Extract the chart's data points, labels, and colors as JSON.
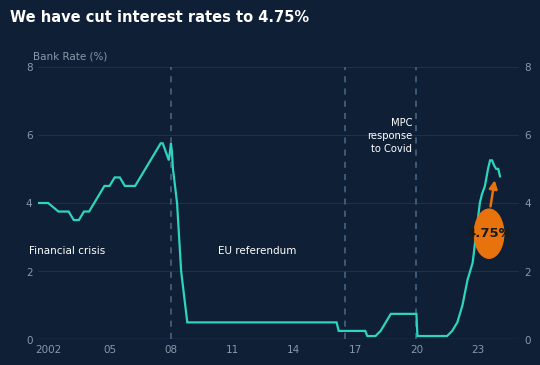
{
  "title": "We have cut interest rates to 4.75%",
  "ylabel": "Bank Rate (%)",
  "bg_color": "#0f1f35",
  "line_color": "#2dd4bf",
  "text_color": "#ffffff",
  "grid_color": "#1e3050",
  "label_color": "#8899aa",
  "ylim": [
    0,
    8
  ],
  "yticks": [
    0,
    2,
    4,
    6,
    8
  ],
  "xticks": [
    2002,
    2005,
    2008,
    2011,
    2014,
    2017,
    2020,
    2023
  ],
  "xlabels": [
    "2002",
    "05",
    "08",
    "11",
    "14",
    "17",
    "20",
    "23"
  ],
  "xlim": [
    2001.5,
    2025.0
  ],
  "vline_financial": 2008.0,
  "vline_eu": 2016.5,
  "vline_covid": 2020.0,
  "annotation_value": "4.75%",
  "orange_color": "#e8720c",
  "series": [
    [
      2001.5,
      4.0
    ],
    [
      2002.0,
      4.0
    ],
    [
      2002.5,
      3.75
    ],
    [
      2003.0,
      3.75
    ],
    [
      2003.25,
      3.5
    ],
    [
      2003.5,
      3.5
    ],
    [
      2003.75,
      3.75
    ],
    [
      2004.0,
      3.75
    ],
    [
      2004.25,
      4.0
    ],
    [
      2004.5,
      4.25
    ],
    [
      2004.75,
      4.5
    ],
    [
      2005.0,
      4.5
    ],
    [
      2005.25,
      4.75
    ],
    [
      2005.5,
      4.75
    ],
    [
      2005.75,
      4.5
    ],
    [
      2006.0,
      4.5
    ],
    [
      2006.25,
      4.5
    ],
    [
      2006.5,
      4.75
    ],
    [
      2006.75,
      5.0
    ],
    [
      2007.0,
      5.25
    ],
    [
      2007.25,
      5.5
    ],
    [
      2007.5,
      5.75
    ],
    [
      2007.6,
      5.75
    ],
    [
      2007.75,
      5.5
    ],
    [
      2007.9,
      5.25
    ],
    [
      2007.95,
      5.5
    ],
    [
      2008.0,
      5.75
    ],
    [
      2008.05,
      5.5
    ],
    [
      2008.1,
      5.0
    ],
    [
      2008.2,
      4.5
    ],
    [
      2008.3,
      4.0
    ],
    [
      2008.4,
      3.0
    ],
    [
      2008.5,
      2.0
    ],
    [
      2008.6,
      1.5
    ],
    [
      2008.7,
      1.0
    ],
    [
      2008.8,
      0.5
    ],
    [
      2009.0,
      0.5
    ],
    [
      2016.0,
      0.5
    ],
    [
      2016.1,
      0.5
    ],
    [
      2016.2,
      0.25
    ],
    [
      2016.5,
      0.25
    ],
    [
      2017.0,
      0.25
    ],
    [
      2017.5,
      0.25
    ],
    [
      2017.6,
      0.1
    ],
    [
      2018.0,
      0.1
    ],
    [
      2018.25,
      0.25
    ],
    [
      2018.5,
      0.5
    ],
    [
      2018.75,
      0.75
    ],
    [
      2019.0,
      0.75
    ],
    [
      2019.5,
      0.75
    ],
    [
      2020.0,
      0.75
    ],
    [
      2020.05,
      0.1
    ],
    [
      2020.15,
      0.1
    ],
    [
      2020.5,
      0.1
    ],
    [
      2021.0,
      0.1
    ],
    [
      2021.5,
      0.1
    ],
    [
      2021.75,
      0.25
    ],
    [
      2022.0,
      0.5
    ],
    [
      2022.25,
      1.0
    ],
    [
      2022.5,
      1.75
    ],
    [
      2022.75,
      2.25
    ],
    [
      2022.9,
      3.0
    ],
    [
      2023.0,
      3.5
    ],
    [
      2023.1,
      4.0
    ],
    [
      2023.2,
      4.25
    ],
    [
      2023.35,
      4.5
    ],
    [
      2023.5,
      5.0
    ],
    [
      2023.6,
      5.25
    ],
    [
      2023.7,
      5.25
    ],
    [
      2023.8,
      5.1
    ],
    [
      2023.9,
      5.0
    ],
    [
      2024.0,
      5.0
    ],
    [
      2024.1,
      4.75
    ]
  ]
}
